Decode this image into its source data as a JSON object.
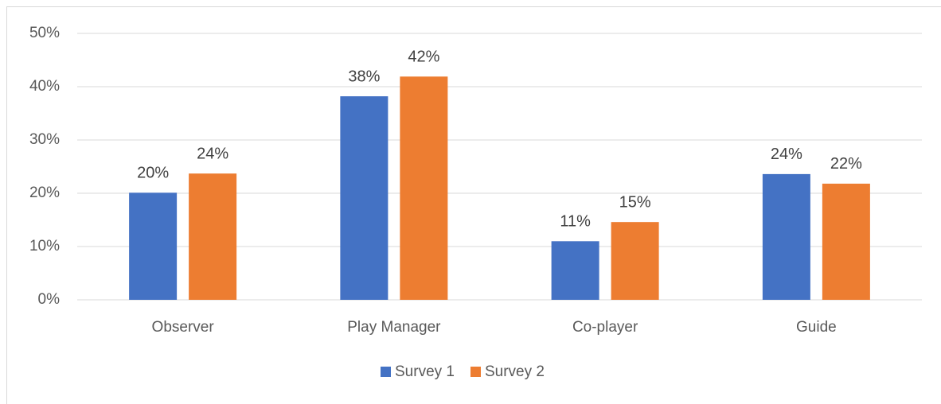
{
  "chart_data": {
    "type": "bar",
    "categories": [
      "Observer",
      "Play Manager",
      "Co-player",
      "Guide"
    ],
    "series": [
      {
        "name": "Survey 1",
        "color": "#4472c4",
        "values": [
          20.1,
          38.2,
          11.0,
          23.6
        ],
        "value_labels": [
          "20%",
          "38%",
          "11%",
          "24%"
        ]
      },
      {
        "name": "Survey 2",
        "color": "#ed7d31",
        "values": [
          23.7,
          41.9,
          14.6,
          21.8
        ],
        "value_labels": [
          "24%",
          "42%",
          "15%",
          "22%"
        ]
      }
    ],
    "ylim": [
      0,
      50
    ],
    "yticks": [
      {
        "value": 0,
        "label": "0%"
      },
      {
        "value": 10,
        "label": "10%"
      },
      {
        "value": 20,
        "label": "20%"
      },
      {
        "value": 30,
        "label": "30%"
      },
      {
        "value": 40,
        "label": "40%"
      },
      {
        "value": 50,
        "label": "50%"
      }
    ],
    "grid": true,
    "legend": "bottom"
  }
}
